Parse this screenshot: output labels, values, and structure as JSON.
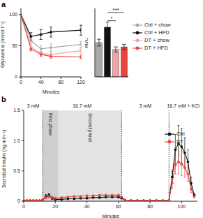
{
  "chart_data": [
    {
      "type": "line",
      "panel_label": "a",
      "x_label": "Minutes",
      "y_label": "Glycaemia (mmol l⁻¹)",
      "x": [
        0,
        20,
        40,
        60,
        120
      ],
      "xlim": [
        0,
        120
      ],
      "xticks": [
        0,
        40,
        80,
        120
      ],
      "ylim": [
        0,
        110
      ],
      "yticks": [
        0,
        50,
        100
      ],
      "marker": "circle",
      "legend": "right",
      "series": [
        {
          "name": "Ctrl + chow",
          "color": "#a9a9a9",
          "values": [
            100,
            58,
            45,
            47,
            52
          ],
          "errors": [
            0,
            5,
            5,
            6,
            5
          ]
        },
        {
          "name": "Ctrl + HFD",
          "color": "#111111",
          "values": [
            100,
            65,
            68,
            72,
            75
          ],
          "errors": [
            0,
            6,
            8,
            8,
            8
          ]
        },
        {
          "name": "DT + chow",
          "color": "#f4a3a3",
          "values": [
            100,
            48,
            38,
            36,
            42
          ],
          "errors": [
            0,
            4,
            3,
            4,
            4
          ]
        },
        {
          "name": "DT + HFD",
          "color": "#e8453c",
          "values": [
            100,
            45,
            36,
            33,
            32
          ],
          "errors": [
            0,
            3,
            3,
            3,
            3
          ]
        }
      ]
    },
    {
      "type": "bar",
      "y_label": "AUC",
      "categories": [
        "Ctrl + chow",
        "Ctrl + HFD",
        "DT + chow",
        "DT + HFD"
      ],
      "values": [
        200,
        290,
        160,
        175
      ],
      "errors": [
        20,
        30,
        15,
        15
      ],
      "colors": [
        "#a9a9a9",
        "#111111",
        "#f4a3a3",
        "#e8453c"
      ],
      "ylim": [
        0,
        400
      ],
      "tick_labels": false,
      "annotations": [
        {
          "text": "*",
          "from": 1,
          "to": 2
        },
        {
          "text": "***",
          "from": 1,
          "to": 3
        }
      ]
    },
    {
      "type": "line",
      "panel_label": "b",
      "x_label": "Minutes",
      "y_label": "Secreted insulin (ng min⁻¹)",
      "x": [
        0,
        2,
        4,
        6,
        8,
        10,
        12,
        14,
        16,
        18,
        20,
        24,
        28,
        32,
        36,
        40,
        44,
        48,
        52,
        56,
        60,
        62,
        64,
        68,
        72,
        76,
        80,
        84,
        88,
        92,
        94,
        96,
        98,
        100,
        102,
        104,
        106,
        108
      ],
      "xlim": [
        0,
        110
      ],
      "xticks": [
        0,
        20,
        40,
        60,
        80,
        100
      ],
      "ylim": [
        0,
        1.5
      ],
      "yticks": [
        0,
        0.5,
        {
          "value": 1,
          "label": "1.0"
        },
        1.5
      ],
      "marker": "circle",
      "legend": "upper right",
      "stimuli": [
        {
          "label": "3 mM",
          "start": 0,
          "end": 12
        },
        {
          "label": "16.7 mM",
          "start": 12,
          "end": 62
        },
        {
          "label": "3 mM",
          "start": 62,
          "end": 92
        },
        {
          "label": "16.7 mM + KCl",
          "start": 92,
          "end": 110
        }
      ],
      "phases": [
        {
          "label": "First phase",
          "start": 12,
          "end": 22
        },
        {
          "label": "Second phase",
          "start": 22,
          "end": 62
        }
      ],
      "series": [
        {
          "name": "Ctrl",
          "color": "#111111",
          "values": [
            0.01,
            0.01,
            0.01,
            0.01,
            0.01,
            0.01,
            0.02,
            0.08,
            0.1,
            0.05,
            0.03,
            0.03,
            0.04,
            0.04,
            0.05,
            0.05,
            0.06,
            0.06,
            0.07,
            0.07,
            0.07,
            0.05,
            0.02,
            0.01,
            0.01,
            0.01,
            0.01,
            0.01,
            0.01,
            0.01,
            0.4,
            0.85,
            0.95,
            0.9,
            0.8,
            0.65,
            0.3,
            0.1
          ],
          "errors": [
            0.005,
            0.005,
            0.005,
            0.005,
            0.005,
            0.005,
            0.01,
            0.03,
            0.03,
            0.02,
            0.01,
            0.01,
            0.01,
            0.01,
            0.01,
            0.01,
            0.01,
            0.01,
            0.01,
            0.01,
            0.01,
            0.01,
            0.01,
            0.005,
            0.005,
            0.005,
            0.005,
            0.005,
            0.005,
            0.005,
            0.1,
            0.25,
            0.3,
            0.3,
            0.25,
            0.2,
            0.1,
            0.03
          ]
        },
        {
          "name": "DT",
          "color": "#e8453c",
          "values": [
            0.01,
            0.01,
            0.01,
            0.01,
            0.01,
            0.01,
            0.02,
            0.06,
            0.08,
            0.06,
            0.05,
            0.06,
            0.07,
            0.08,
            0.08,
            0.09,
            0.09,
            0.1,
            0.1,
            0.1,
            0.1,
            0.07,
            0.02,
            0.01,
            0.01,
            0.01,
            0.01,
            0.01,
            0.01,
            0.01,
            0.3,
            0.6,
            0.65,
            0.62,
            0.55,
            0.45,
            0.2,
            0.08
          ],
          "errors": [
            0.005,
            0.005,
            0.005,
            0.005,
            0.005,
            0.005,
            0.01,
            0.02,
            0.02,
            0.02,
            0.01,
            0.01,
            0.01,
            0.01,
            0.01,
            0.01,
            0.01,
            0.01,
            0.01,
            0.01,
            0.01,
            0.01,
            0.01,
            0.005,
            0.005,
            0.005,
            0.005,
            0.005,
            0.005,
            0.005,
            0.08,
            0.15,
            0.2,
            0.2,
            0.15,
            0.12,
            0.06,
            0.02
          ]
        }
      ]
    }
  ]
}
